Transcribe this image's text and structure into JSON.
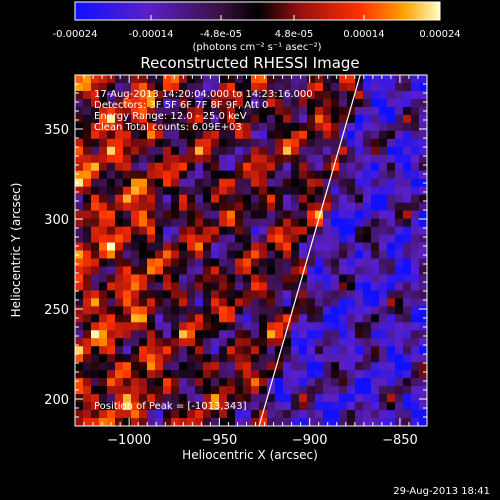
{
  "chart_data": {
    "type": "heatmap",
    "title": "Reconstructed RHESSI Image",
    "xlabel": "Heliocentric X (arcsec)",
    "ylabel": "Heliocentric Y (arcsec)",
    "xlim": [
      -1030,
      -835
    ],
    "ylim": [
      185,
      380
    ],
    "x_ticks": [
      -1000,
      -950,
      -900,
      -850
    ],
    "y_ticks": [
      200,
      250,
      300,
      350
    ],
    "colorbar": {
      "ticks": [
        -0.00024,
        -0.00014,
        -4.8e-05,
        4.8e-05,
        0.00014,
        0.00024
      ],
      "tick_labels": [
        "-0.00024",
        "-0.00014",
        "-4.8e-05",
        "4.8e-05",
        "0.00014",
        "0.00024"
      ],
      "unit_label": "(photons cm⁻² s⁻¹ asec⁻²)",
      "range": [
        -0.00024,
        0.00024
      ]
    },
    "info_lines": [
      "17-Aug-2013 14:20:04.000 to 14:23:16.000",
      "Detectors: 3F 5F 6F 7F 8F 9F, Att 0",
      "Energy Range: 12.0 - 25.0 keV",
      "Clean     Total counts: 6.09E+03"
    ],
    "peak_label": "Position of Peak = [-1013,343]",
    "limb_line": {
      "x": [
        -928,
        -872
      ],
      "y": [
        185,
        380
      ]
    },
    "grid": false,
    "footer": "29-Aug-2013 18:41"
  }
}
